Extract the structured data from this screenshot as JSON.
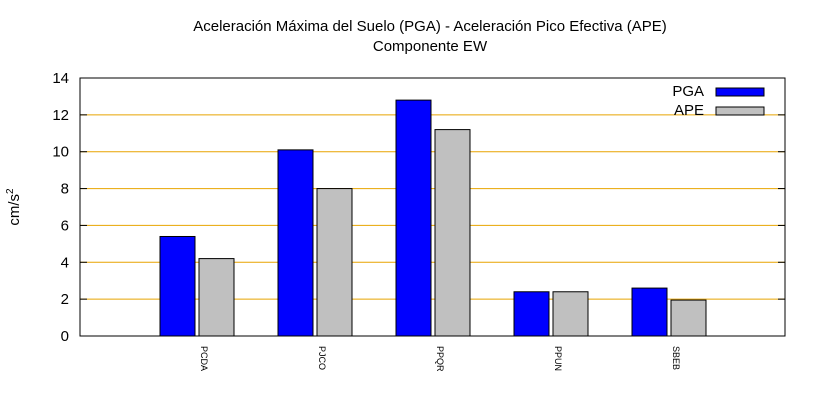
{
  "chart_data": {
    "type": "bar",
    "title": "Aceleración Máxima del Suelo (PGA) -  Aceleración Pico Efectiva (APE)",
    "subtitle": "Componente EW",
    "xlabel": "",
    "ylabel": "cm/s",
    "ylabel_superscript": "2",
    "ylim": [
      0,
      14
    ],
    "yticks": [
      0,
      2,
      4,
      6,
      8,
      10,
      12,
      14
    ],
    "grid": true,
    "grid_color": "#e8a400",
    "legend_position": "top-right",
    "categories": [
      "PCDA",
      "PJCO",
      "PPQR",
      "PPUN",
      "SBEB"
    ],
    "series": [
      {
        "name": "PGA",
        "color": "#0000ff",
        "values": [
          5.4,
          10.1,
          12.8,
          2.4,
          2.6
        ]
      },
      {
        "name": "APE",
        "color": "#c0c0c0",
        "values": [
          4.2,
          8.0,
          11.2,
          2.4,
          1.95
        ]
      }
    ]
  }
}
